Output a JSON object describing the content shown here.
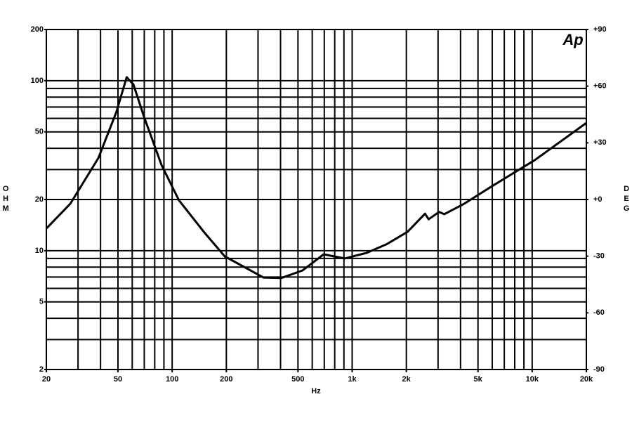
{
  "chart_data": {
    "type": "line",
    "logo": "Ap",
    "xlabel": "Hz",
    "ylabel": "OHM",
    "y2label": "DEG",
    "xlog": true,
    "ylog": true,
    "xlim": [
      20,
      20000
    ],
    "ylim": [
      2,
      200
    ],
    "y2lim": [
      -90,
      90
    ],
    "xticks": [
      20,
      50,
      100,
      200,
      500,
      {
        "value": 1000,
        "label": "1k"
      },
      {
        "value": 2000,
        "label": "2k"
      },
      {
        "value": 5000,
        "label": "5k"
      },
      {
        "value": 10000,
        "label": "10k"
      },
      {
        "value": 20000,
        "label": "20k"
      }
    ],
    "yticks": [
      2,
      5,
      10,
      20,
      50,
      100,
      200
    ],
    "y2ticks": [
      {
        "value": 90,
        "label": "+90"
      },
      {
        "value": 60,
        "label": "+60"
      },
      {
        "value": 30,
        "label": "+30"
      },
      {
        "value": 0,
        "label": "+0"
      },
      -30,
      -60,
      -90
    ],
    "xgrid": [
      20,
      30,
      40,
      50,
      60,
      70,
      80,
      90,
      100,
      200,
      300,
      400,
      500,
      600,
      700,
      800,
      900,
      1000,
      2000,
      3000,
      4000,
      5000,
      6000,
      7000,
      8000,
      9000,
      10000,
      20000
    ],
    "ygrid": [
      2,
      3,
      4,
      5,
      6,
      7,
      8,
      9,
      10,
      20,
      30,
      40,
      50,
      60,
      70,
      80,
      90,
      100,
      200
    ],
    "x": [
      20,
      27.2,
      38.9,
      48.9,
      55.9,
      60.9,
      69.5,
      87.3,
      109,
      150,
      196,
      322,
      404,
      530,
      695,
      795,
      909,
      1200,
      1550,
      2030,
      2540,
      2660,
      3040,
      3250,
      4200,
      6000,
      10300,
      20000
    ],
    "series": [
      {
        "color": "#000000",
        "values": [
          13.5,
          18.9,
          35.1,
          65,
          104.8,
          95,
          62,
          31.9,
          19.8,
          12.9,
          9.25,
          6.95,
          6.9,
          7.65,
          9.52,
          9.25,
          9.0,
          9.7,
          10.9,
          12.9,
          16.5,
          15.3,
          16.9,
          16.4,
          18.9,
          24,
          34,
          56.4
        ]
      }
    ]
  }
}
